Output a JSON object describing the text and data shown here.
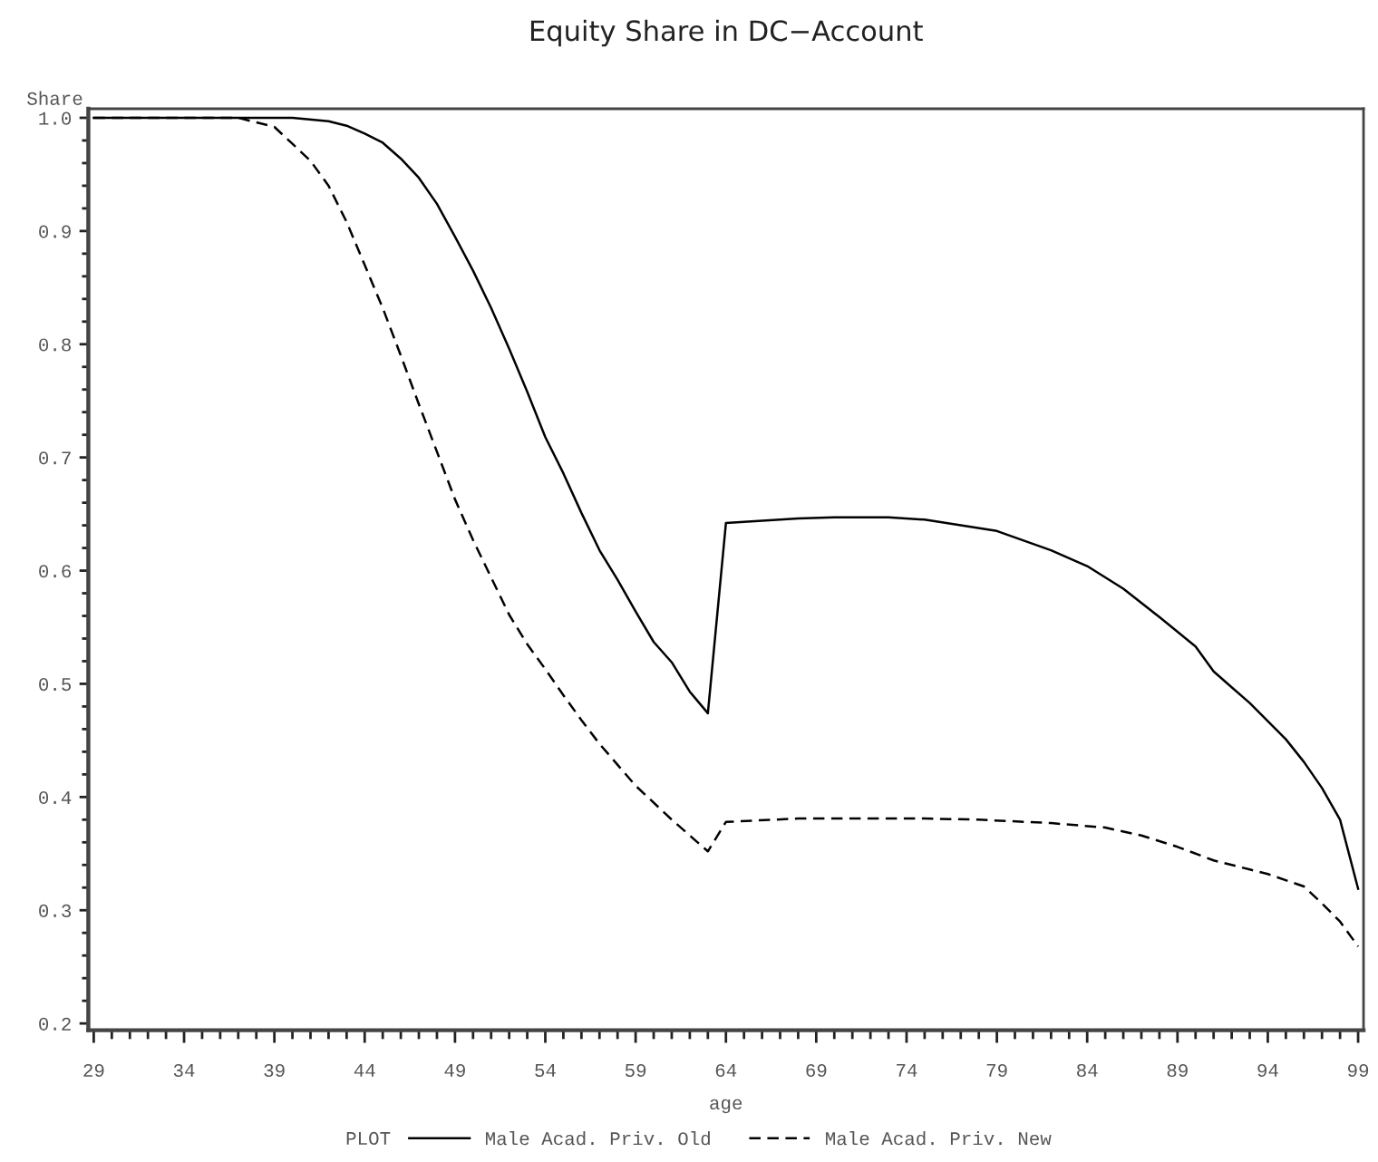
{
  "chart_data": {
    "type": "line",
    "title": "Equity Share in DC−Account",
    "xlabel": "age",
    "ylabel": "Share",
    "legend_title": "PLOT",
    "series": [
      {
        "name": "Male Acad. Priv. Old",
        "color": "#000000",
        "line_style": "solid",
        "x": [
          29,
          40,
          42,
          43,
          44,
          45,
          46,
          47,
          48,
          49,
          50,
          51,
          52,
          53,
          54,
          55,
          56,
          57,
          58,
          59,
          60,
          61,
          62,
          63,
          64,
          68,
          70,
          73,
          75,
          79,
          82,
          84,
          86,
          88,
          90,
          91,
          92,
          93,
          94,
          95,
          96,
          97,
          98,
          99
        ],
        "values": [
          1.0,
          1.0,
          0.997,
          0.993,
          0.986,
          0.978,
          0.964,
          0.947,
          0.924,
          0.895,
          0.865,
          0.832,
          0.796,
          0.758,
          0.718,
          0.686,
          0.651,
          0.618,
          0.592,
          0.564,
          0.537,
          0.519,
          0.493,
          0.474,
          0.642,
          0.646,
          0.647,
          0.647,
          0.645,
          0.635,
          0.618,
          0.604,
          0.584,
          0.559,
          0.533,
          0.511,
          0.497,
          0.483,
          0.467,
          0.451,
          0.431,
          0.408,
          0.38,
          0.319
        ]
      },
      {
        "name": "Male Acad. Priv. New",
        "color": "#000000",
        "line_style": "dashed",
        "x": [
          29,
          37,
          38,
          39,
          40,
          41,
          42,
          43,
          44,
          45,
          46,
          47,
          48,
          49,
          50,
          51,
          52,
          53,
          54,
          55,
          56,
          57,
          59,
          61,
          63,
          64,
          68,
          75,
          78,
          82,
          85,
          87,
          89,
          91,
          93,
          94,
          96,
          97,
          98,
          99
        ],
        "values": [
          1.0,
          1.0,
          0.996,
          0.992,
          0.977,
          0.962,
          0.94,
          0.908,
          0.87,
          0.832,
          0.79,
          0.747,
          0.705,
          0.663,
          0.627,
          0.594,
          0.561,
          0.535,
          0.513,
          0.49,
          0.468,
          0.447,
          0.41,
          0.38,
          0.352,
          0.378,
          0.381,
          0.381,
          0.38,
          0.377,
          0.373,
          0.366,
          0.356,
          0.344,
          0.336,
          0.332,
          0.321,
          0.306,
          0.29,
          0.268
        ]
      }
    ],
    "xlim": [
      28.7,
      99.3
    ],
    "xticks": [
      29,
      34,
      39,
      44,
      49,
      54,
      59,
      64,
      69,
      74,
      79,
      84,
      89,
      94,
      99
    ],
    "ylim": [
      0.194,
      1.008
    ],
    "yticks": [
      0.2,
      0.3,
      0.4,
      0.5,
      0.6,
      0.7,
      0.8,
      0.9,
      {
        "value": 1,
        "label": "1.0"
      }
    ],
    "legend": "bottom"
  }
}
